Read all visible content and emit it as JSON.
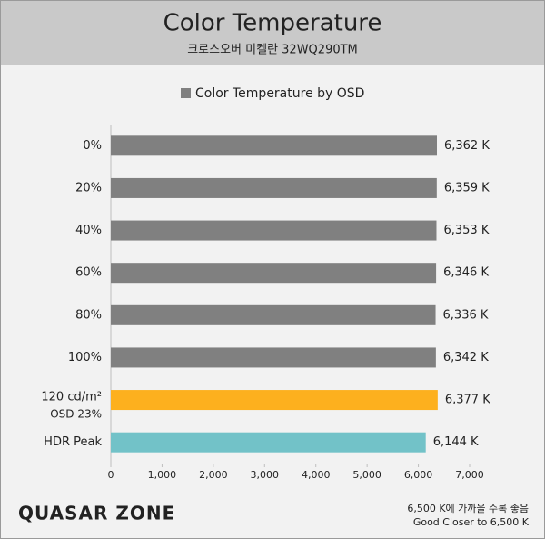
{
  "chart_data": {
    "type": "bar",
    "orientation": "horizontal",
    "title": "Color Temperature",
    "subtitle": "크로스오버 미켈란 32WQ290TM",
    "categories": [
      "0%",
      "20%",
      "40%",
      "60%",
      "80%",
      "100%",
      "120 cd/m²",
      "HDR Peak"
    ],
    "category_sublabels": [
      null,
      null,
      null,
      null,
      null,
      null,
      "OSD 23%",
      null
    ],
    "series": [
      {
        "name": "Color Temperature by OSD",
        "color": "#808080",
        "values": [
          6362,
          6359,
          6353,
          6346,
          6336,
          6342,
          6377,
          6144
        ],
        "value_labels": [
          "6,362 K",
          "6,359 K",
          "6,353 K",
          "6,346 K",
          "6,336 K",
          "6,342 K",
          "6,377 K",
          "6,144 K"
        ],
        "colors": [
          "#808080",
          "#808080",
          "#808080",
          "#808080",
          "#808080",
          "#808080",
          "#fdb01e",
          "#72c2c8"
        ]
      }
    ],
    "xlim": [
      0,
      7000
    ],
    "xticks": [
      0,
      {
        "value": 1000,
        "label": "1,000"
      },
      {
        "value": 2000,
        "label": "2,000"
      },
      {
        "value": 3000,
        "label": "3,000"
      },
      {
        "value": 4000,
        "label": "4,000"
      },
      {
        "value": 5000,
        "label": "5,000"
      },
      {
        "value": 6000,
        "label": "6,000"
      },
      {
        "value": 7000,
        "label": "7,000"
      }
    ],
    "grid": false,
    "legend": "top",
    "notes": [
      "6,500 K에 가까울 수록 좋음",
      "Good Closer to 6,500 K"
    ],
    "brand": "QUASAR ZONE"
  }
}
